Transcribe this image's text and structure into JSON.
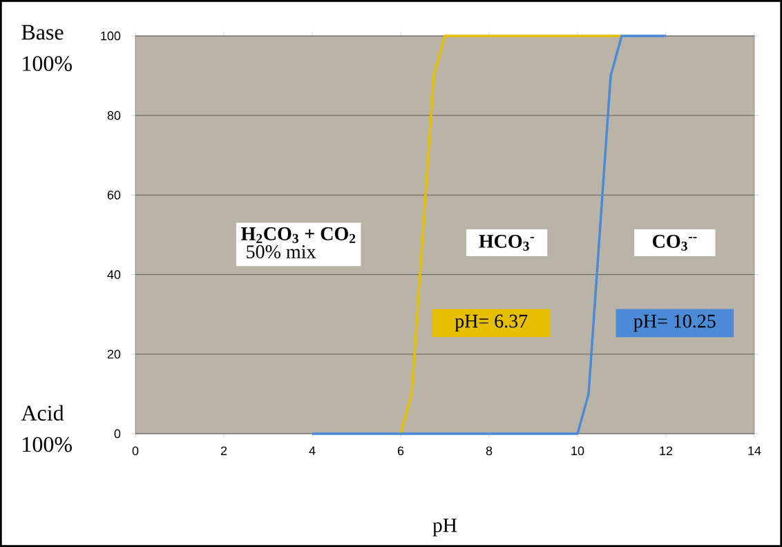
{
  "chart_data": {
    "type": "line",
    "xlabel": "pH",
    "xlim": [
      0,
      14
    ],
    "ylim": [
      0,
      100
    ],
    "xticks": [
      0,
      2,
      4,
      6,
      8,
      10,
      12,
      14
    ],
    "yticks": [
      0,
      20,
      40,
      60,
      80,
      100
    ],
    "grid": "y",
    "marker": "none",
    "line_style": "solid",
    "series": [
      {
        "color": "#e6bf00",
        "x": [
          6,
          6.25,
          6.75,
          7,
          11
        ],
        "values": [
          0,
          10,
          90,
          100,
          100
        ]
      },
      {
        "color": "#4b8ad6",
        "x": [
          4,
          10,
          10.25,
          10.75,
          11,
          12
        ],
        "values": [
          0,
          0,
          10,
          90,
          100,
          100
        ]
      }
    ],
    "annotations": [
      "H$_{2}$CO$_{3}$ + CO$_{2}$",
      "50% mix",
      "HCO$_{3}$$^{-}$",
      "CO$_{3}$$^{--}$",
      "pH= 6.37",
      "pH= 10.25",
      "Base 100%",
      "Acid 100%"
    ]
  }
}
